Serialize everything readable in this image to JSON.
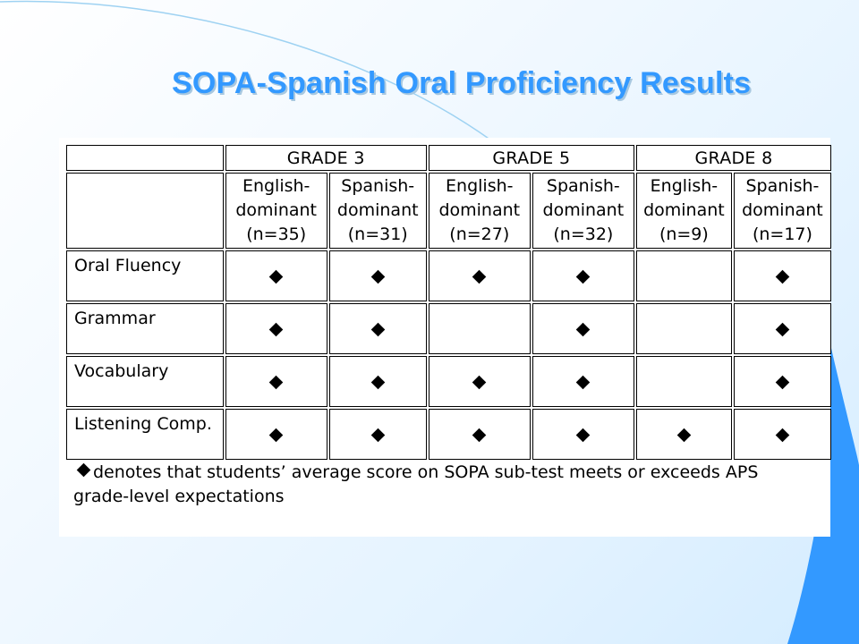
{
  "slide": {
    "title": "SOPA-Spanish Oral Proficiency Results"
  },
  "table": {
    "grades": [
      {
        "label": "GRADE 3"
      },
      {
        "label": "GRADE 5"
      },
      {
        "label": "GRADE 8"
      }
    ],
    "groups": [
      {
        "line1": "English-",
        "line2": "dominant",
        "line3": "(n=35)"
      },
      {
        "line1": "Spanish-",
        "line2": "dominant",
        "line3": "(n=31)"
      },
      {
        "line1": "English-",
        "line2": "dominant",
        "line3": "(n=27)"
      },
      {
        "line1": "Spanish-",
        "line2": "dominant",
        "line3": "(n=32)"
      },
      {
        "line1": "English-",
        "line2": "dominant",
        "line3": "(n=9)"
      },
      {
        "line1": "Spanish-",
        "line2": "dominant",
        "line3": "(n=17)"
      }
    ],
    "rows": [
      {
        "label": "Oral Fluency",
        "marks": [
          true,
          true,
          true,
          true,
          false,
          true
        ]
      },
      {
        "label": "Grammar",
        "marks": [
          true,
          true,
          false,
          true,
          false,
          true
        ]
      },
      {
        "label": "Vocabulary",
        "marks": [
          true,
          true,
          true,
          true,
          false,
          true
        ]
      },
      {
        "label": "Listening Comp.",
        "marks": [
          true,
          true,
          true,
          true,
          true,
          true
        ]
      }
    ],
    "marker_icon": "diamond-icon"
  },
  "legend": {
    "text": "denotes that students’ average score on SOPA sub-test meets or exceeds APS grade-level expectations"
  },
  "colors": {
    "title": "#3399ff",
    "title_shadow": "#a8c8e0",
    "accent_bar": "#3399ff"
  }
}
